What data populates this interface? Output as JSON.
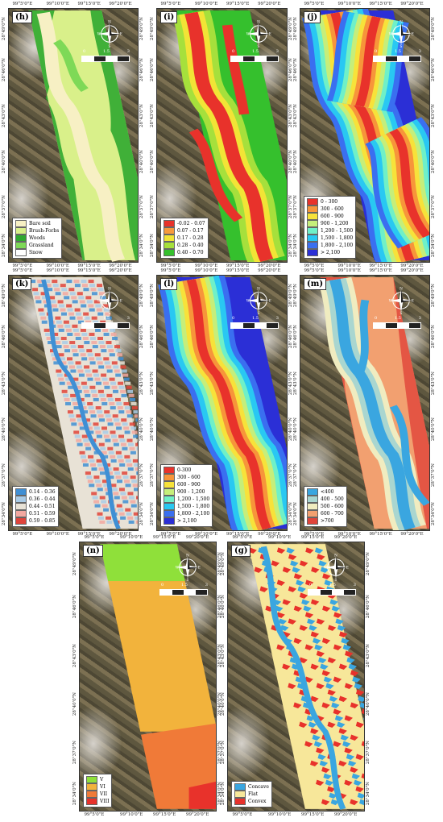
{
  "panels": [
    {
      "id": "h",
      "label": "(h)",
      "legend": [
        {
          "text": "Bare soil",
          "color": "#f7f0c4"
        },
        {
          "text": "Brush-Forbs",
          "color": "#d9f08a"
        },
        {
          "text": "Woods",
          "color": "#2fa82f"
        },
        {
          "text": "Grassland",
          "color": "#7ed957"
        },
        {
          "text": "Snow",
          "color": "#ffffff"
        }
      ]
    },
    {
      "id": "i",
      "label": "(i)",
      "legend": [
        {
          "text": "-0.02 - 0.07",
          "color": "#e8322b"
        },
        {
          "text": "0.07 - 0.17",
          "color": "#f79a3c"
        },
        {
          "text": "0.17 - 0.28",
          "color": "#f2e436"
        },
        {
          "text": "0.28 - 0.40",
          "color": "#a6e03c"
        },
        {
          "text": "0.40 - 0.70",
          "color": "#35c02d"
        }
      ]
    },
    {
      "id": "j",
      "label": "(j)",
      "legend": [
        {
          "text": "0 - 300",
          "color": "#e8322b"
        },
        {
          "text": "300 - 600",
          "color": "#f7953a"
        },
        {
          "text": "600 - 900",
          "color": "#f7e23a"
        },
        {
          "text": "900 - 1,200",
          "color": "#c6ee7a"
        },
        {
          "text": "1,200 - 1,500",
          "color": "#6ff0c8"
        },
        {
          "text": "1,500 - 1,800",
          "color": "#29c8f2"
        },
        {
          "text": "1,800 - 2,100",
          "color": "#3a6ff0"
        },
        {
          "text": "> 2,100",
          "color": "#2b2fd6"
        }
      ]
    },
    {
      "id": "k",
      "label": "(k)",
      "legend": [
        {
          "text": "0.14 - 0.36",
          "color": "#3f8fd4"
        },
        {
          "text": "0.36 - 0.44",
          "color": "#a9cbe6"
        },
        {
          "text": "0.44 - 0.51",
          "color": "#e8e2d6"
        },
        {
          "text": "0.51 - 0.59",
          "color": "#f2a8a0"
        },
        {
          "text": "0.59 - 0.85",
          "color": "#e0443a"
        }
      ]
    },
    {
      "id": "l",
      "label": "(l)",
      "legend": [
        {
          "text": "0-300",
          "color": "#e8322b"
        },
        {
          "text": "300 - 600",
          "color": "#f7953a"
        },
        {
          "text": "600 - 900",
          "color": "#f7e23a"
        },
        {
          "text": "900 - 1,200",
          "color": "#c6ee7a"
        },
        {
          "text": "1,200 - 1,500",
          "color": "#6ff0c8"
        },
        {
          "text": "1,500 - 1,800",
          "color": "#29c8f2"
        },
        {
          "text": "1,800 - 2,100",
          "color": "#3a6ff0"
        },
        {
          "text": "> 2,100",
          "color": "#2b2fd6"
        }
      ]
    },
    {
      "id": "m",
      "label": "(m)",
      "legend": [
        {
          "text": "<400",
          "color": "#3aa6e0"
        },
        {
          "text": "400 - 500",
          "color": "#a9d6d0"
        },
        {
          "text": "500 - 600",
          "color": "#f0ecc0"
        },
        {
          "text": "600 - 700",
          "color": "#f2a070"
        },
        {
          "text": ">700",
          "color": "#e0443a"
        }
      ]
    },
    {
      "id": "n",
      "label": "(n)",
      "legend": [
        {
          "text": "V",
          "color": "#8fe03a"
        },
        {
          "text": "VI",
          "color": "#f2b33c"
        },
        {
          "text": "VII",
          "color": "#f07a38"
        },
        {
          "text": "VIII",
          "color": "#e8322b"
        }
      ]
    },
    {
      "id": "g",
      "label": "(g)",
      "legend": [
        {
          "text": "Concave",
          "color": "#3aa6e0"
        },
        {
          "text": "Flat",
          "color": "#f7e79a"
        },
        {
          "text": "Convex",
          "color": "#e8322b"
        }
      ]
    }
  ],
  "lon_ticks": [
    "99°5'0\"E",
    "99°10'0\"E",
    "99°15'0\"E",
    "99°20'0\"E"
  ],
  "lat_ticks": [
    "28°49'0\"N",
    "28°46'0\"N",
    "28°43'0\"N",
    "28°40'0\"N",
    "28°37'0\"N",
    "28°34'0\"N"
  ],
  "compass": {
    "n": "N",
    "s": "S",
    "e": "E",
    "w": "W"
  },
  "scale": {
    "start": "0",
    "mid": "1.5",
    "end": "3"
  }
}
